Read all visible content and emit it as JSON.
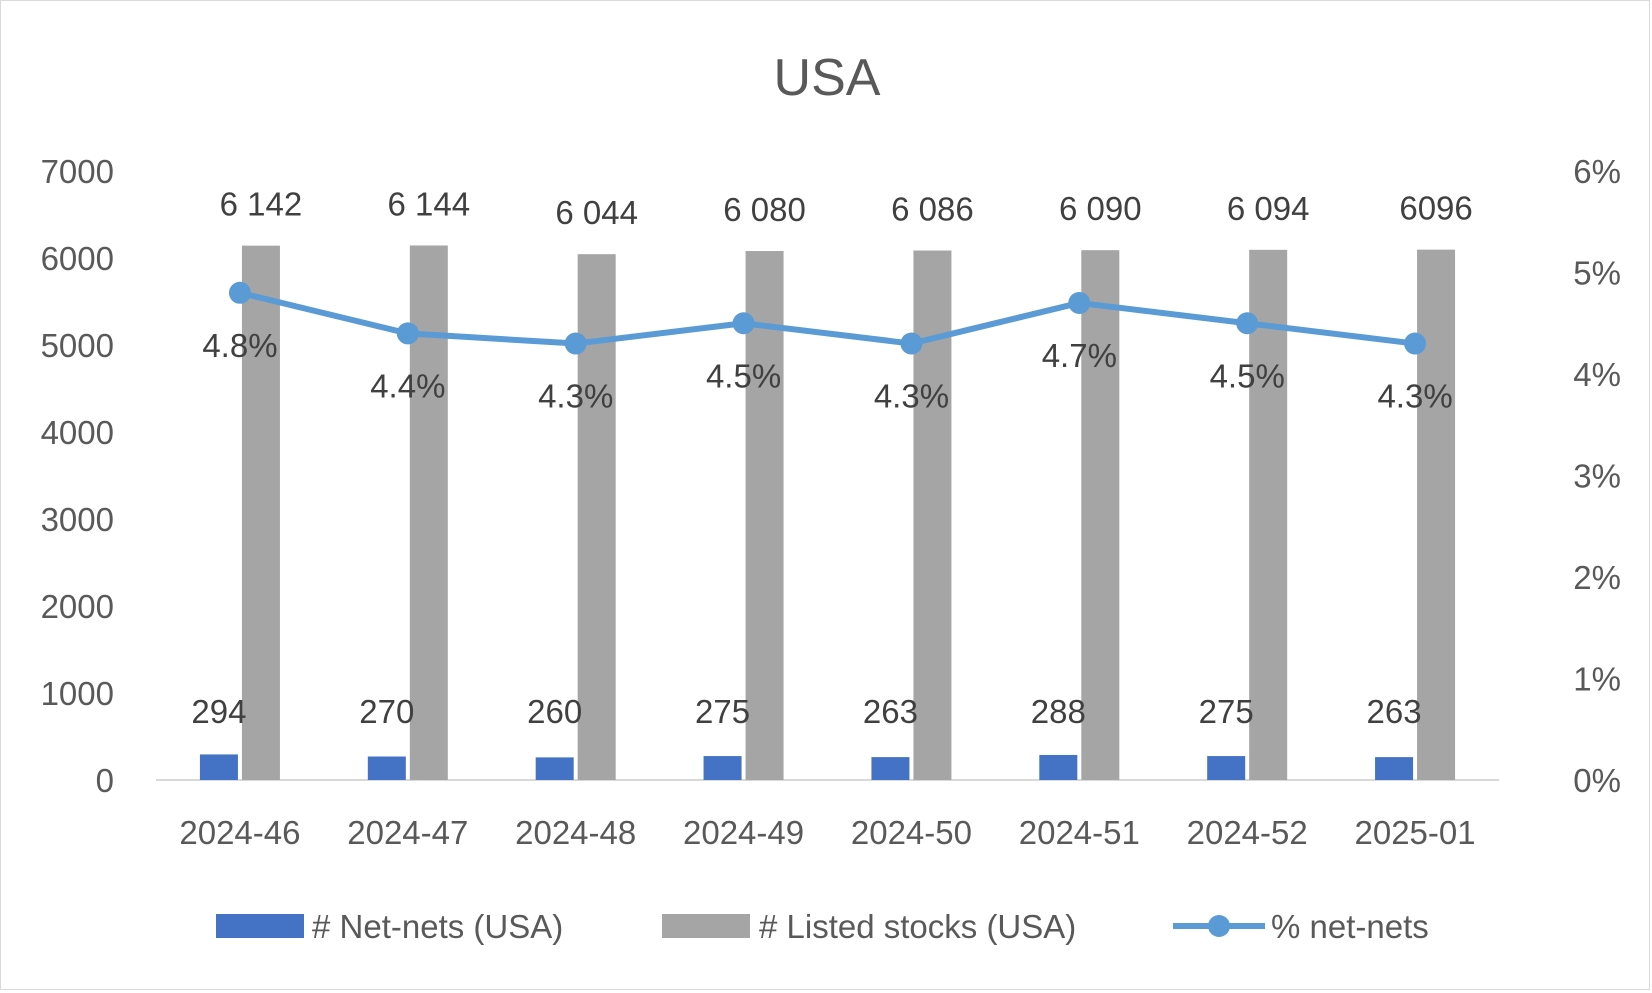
{
  "chart_data": {
    "type": "bar",
    "title": "USA",
    "categories": [
      "2024-46",
      "2024-47",
      "2024-48",
      "2024-49",
      "2024-50",
      "2024-51",
      "2024-52",
      "2025-01"
    ],
    "series": [
      {
        "name": "# Net-nets (USA)",
        "kind": "bar",
        "axis": "left",
        "color": "#4472c4",
        "values": [
          294,
          270,
          260,
          275,
          263,
          288,
          275,
          263
        ],
        "labels": [
          "294",
          "270",
          "260",
          "275",
          "263",
          "288",
          "275",
          "263"
        ]
      },
      {
        "name": "# Listed stocks (USA)",
        "kind": "bar",
        "axis": "left",
        "color": "#a5a5a5",
        "values": [
          6142,
          6144,
          6044,
          6080,
          6086,
          6090,
          6094,
          6096
        ],
        "labels": [
          "6 142",
          "6 144",
          "6 044",
          "6 080",
          "6 086",
          "6 090",
          "6 094",
          "6096"
        ]
      },
      {
        "name": "% net-nets",
        "kind": "line",
        "axis": "right",
        "color": "#5b9bd5",
        "values": [
          4.8,
          4.4,
          4.3,
          4.5,
          4.3,
          4.7,
          4.5,
          4.3
        ],
        "labels": [
          "4.8%",
          "4.4%",
          "4.3%",
          "4.5%",
          "4.3%",
          "4.7%",
          "4.5%",
          "4.3%"
        ]
      }
    ],
    "y_left": {
      "ylim": [
        0,
        7000
      ],
      "ticks": [
        "0",
        "1000",
        "2000",
        "3000",
        "4000",
        "5000",
        "6000",
        "7000"
      ]
    },
    "y_right": {
      "ylim": [
        0,
        6
      ],
      "ticks": [
        "0%",
        "1%",
        "2%",
        "3%",
        "4%",
        "5%",
        "6%"
      ]
    },
    "grid": false,
    "legend_position": "bottom"
  }
}
